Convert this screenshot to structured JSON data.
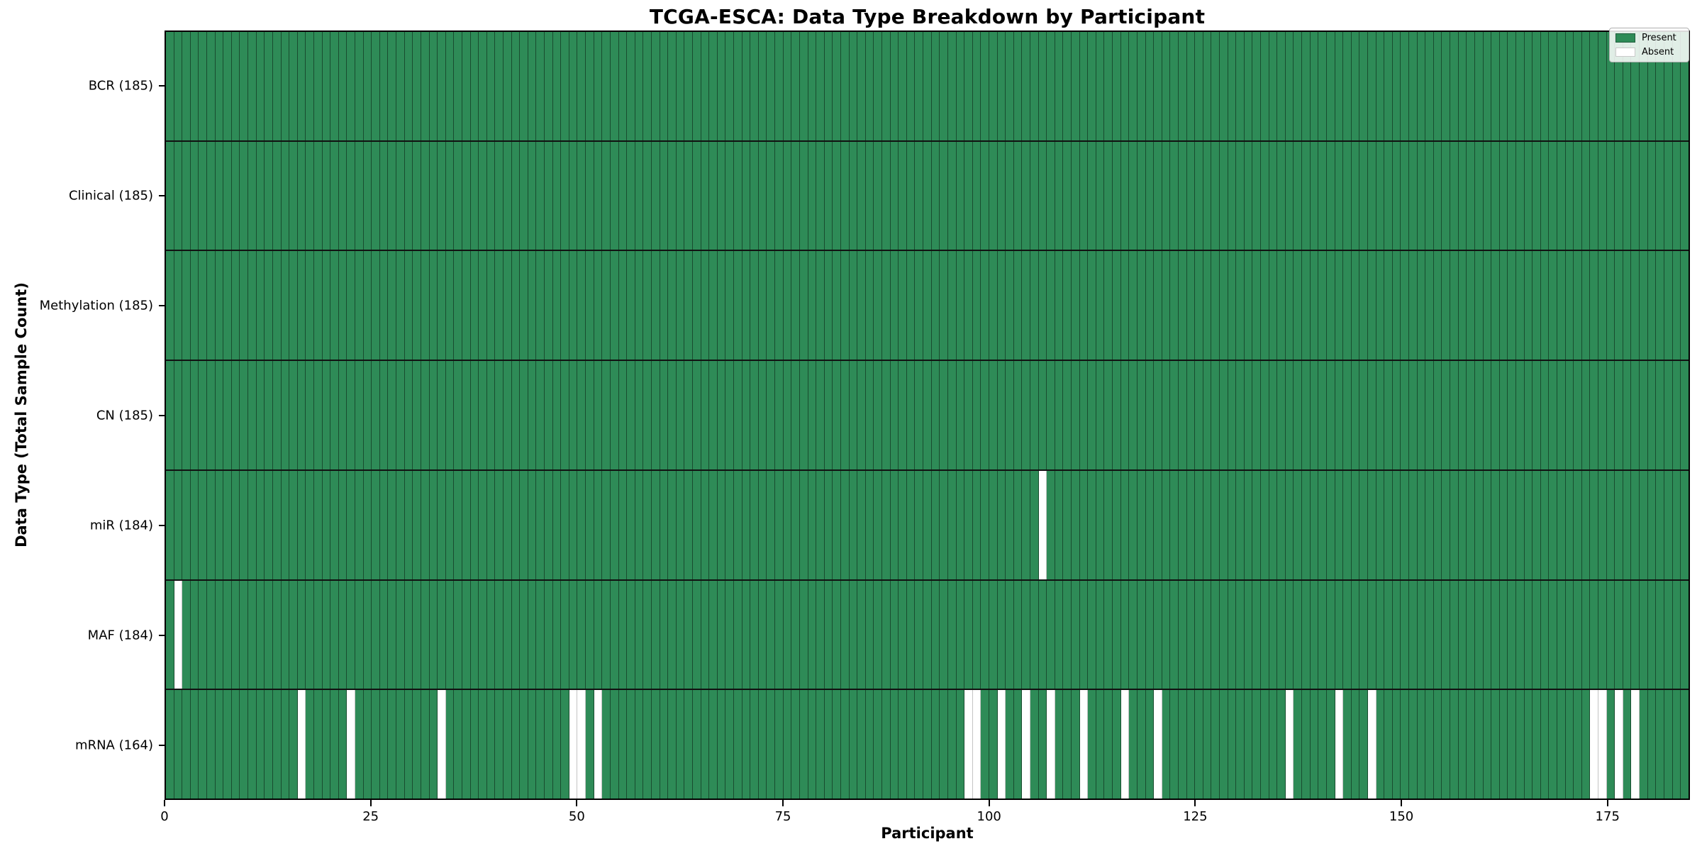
{
  "title": "TCGA-ESCA: Data Type Breakdown by Participant",
  "x_axis": {
    "label": "Participant",
    "ticks": [
      0,
      25,
      50,
      75,
      100,
      125,
      150,
      175
    ]
  },
  "y_axis": {
    "label": "Data Type (Total Sample Count)"
  },
  "legend": [
    {
      "label": "Present",
      "color": "#2e8b57"
    },
    {
      "label": "Absent",
      "color": "#ffffff"
    }
  ],
  "colors": {
    "present": "#2e8b57",
    "absent": "#ffffff",
    "cell_edge": "rgba(0,0,0,0.45)",
    "absent_edge": "#c4c4c4"
  },
  "chart_data": {
    "type": "heatmap",
    "title": "TCGA-ESCA: Data Type Breakdown by Participant",
    "xlabel": "Participant",
    "ylabel": "Data Type (Total Sample Count)",
    "x_range": [
      0,
      185
    ],
    "n_participants": 185,
    "legend_position": "upper right",
    "value_encoding": {
      "present": 1,
      "absent": 0
    },
    "rows": [
      {
        "name": "BCR",
        "label": "BCR (185)",
        "total": 185,
        "absent_participants": []
      },
      {
        "name": "Clinical",
        "label": "Clinical (185)",
        "total": 185,
        "absent_participants": []
      },
      {
        "name": "Methylation",
        "label": "Methylation (185)",
        "total": 185,
        "absent_participants": []
      },
      {
        "name": "CN",
        "label": "CN (185)",
        "total": 185,
        "absent_participants": []
      },
      {
        "name": "miR",
        "label": "miR (184)",
        "total": 184,
        "absent_participants": [
          106
        ]
      },
      {
        "name": "MAF",
        "label": "MAF (184)",
        "total": 184,
        "absent_participants": [
          1
        ]
      },
      {
        "name": "mRNA",
        "label": "mRNA (164)",
        "total": 164,
        "absent_participants": [
          16,
          22,
          33,
          49,
          50,
          52,
          97,
          98,
          101,
          104,
          107,
          111,
          116,
          120,
          136,
          142,
          146,
          173,
          174,
          176,
          178
        ]
      }
    ]
  }
}
